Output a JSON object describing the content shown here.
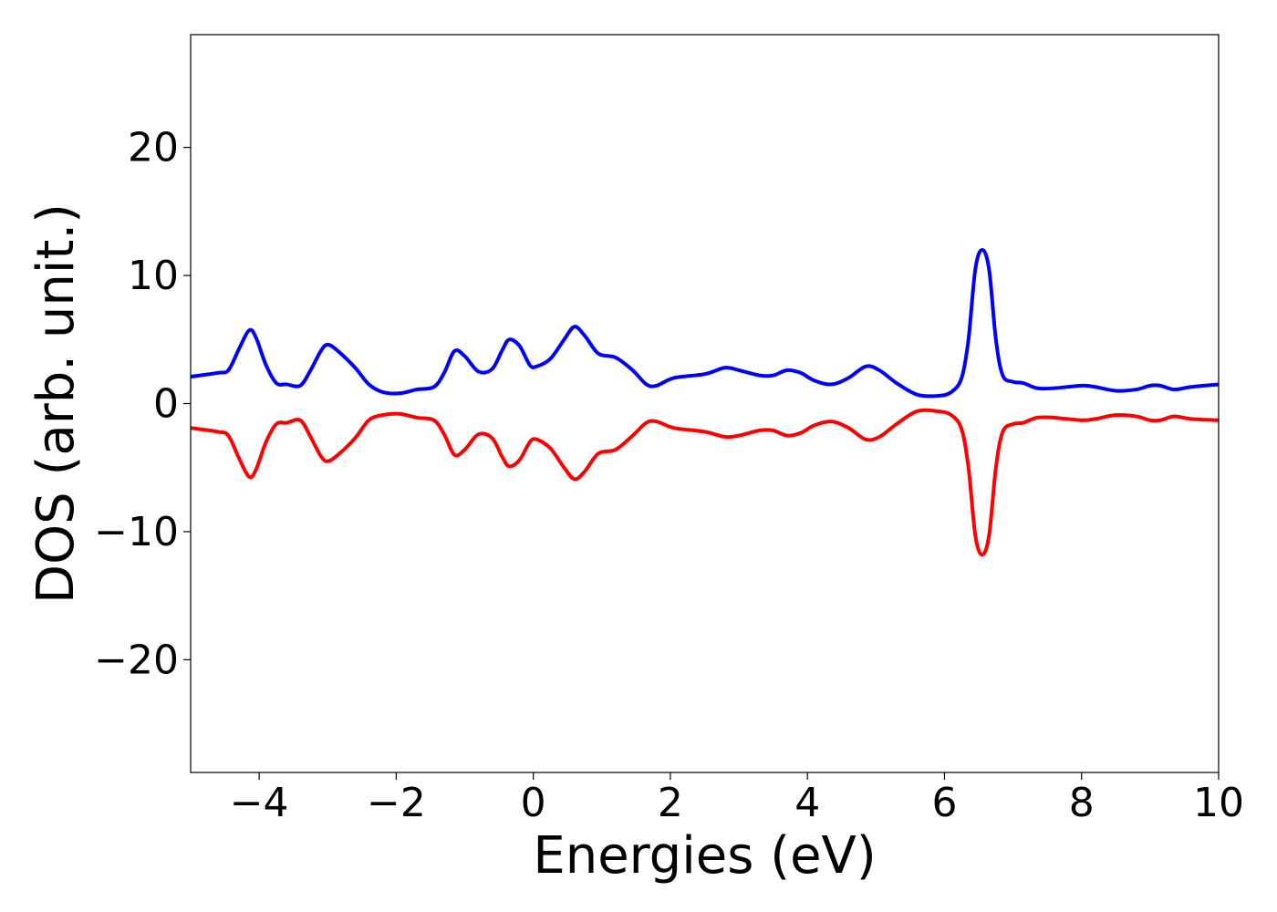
{
  "chart_data": {
    "type": "line",
    "title": "",
    "xlabel": "Energies (eV)",
    "ylabel": "DOS (arb. unit.)",
    "xlim": [
      -5,
      10
    ],
    "ylim": [
      -28.8,
      28.8
    ],
    "xticks": [
      -4,
      -2,
      0,
      2,
      4,
      6,
      8,
      10
    ],
    "yticks": [
      -20,
      -10,
      0,
      10,
      20
    ],
    "xtick_labels": [
      "−4",
      "−2",
      "0",
      "2",
      "4",
      "6",
      "8",
      "10"
    ],
    "ytick_labels": [
      "−20",
      "−10",
      "0",
      "10",
      "20"
    ],
    "grid": false,
    "legend": "none",
    "series": [
      {
        "color": "#0000ff",
        "points": [
          [
            -5.0,
            2.1
          ],
          [
            -4.6,
            2.4
          ],
          [
            -4.45,
            2.6
          ],
          [
            -4.3,
            4.2
          ],
          [
            -4.15,
            5.7
          ],
          [
            -4.05,
            5.2
          ],
          [
            -3.9,
            3.0
          ],
          [
            -3.75,
            1.6
          ],
          [
            -3.6,
            1.5
          ],
          [
            -3.4,
            1.4
          ],
          [
            -3.25,
            2.6
          ],
          [
            -3.1,
            4.1
          ],
          [
            -3.0,
            4.6
          ],
          [
            -2.85,
            4.1
          ],
          [
            -2.6,
            2.8
          ],
          [
            -2.4,
            1.5
          ],
          [
            -2.2,
            0.9
          ],
          [
            -1.95,
            0.8
          ],
          [
            -1.7,
            1.1
          ],
          [
            -1.45,
            1.3
          ],
          [
            -1.3,
            2.4
          ],
          [
            -1.15,
            4.1
          ],
          [
            -1.0,
            3.7
          ],
          [
            -0.8,
            2.5
          ],
          [
            -0.6,
            2.7
          ],
          [
            -0.45,
            4.2
          ],
          [
            -0.35,
            5.0
          ],
          [
            -0.2,
            4.5
          ],
          [
            -0.05,
            3.0
          ],
          [
            0.05,
            2.9
          ],
          [
            0.25,
            3.5
          ],
          [
            0.45,
            5.0
          ],
          [
            0.6,
            6.0
          ],
          [
            0.75,
            5.3
          ],
          [
            0.95,
            3.9
          ],
          [
            1.2,
            3.6
          ],
          [
            1.45,
            2.6
          ],
          [
            1.65,
            1.5
          ],
          [
            1.8,
            1.4
          ],
          [
            2.05,
            2.0
          ],
          [
            2.5,
            2.3
          ],
          [
            2.8,
            2.8
          ],
          [
            3.0,
            2.6
          ],
          [
            3.3,
            2.2
          ],
          [
            3.5,
            2.2
          ],
          [
            3.7,
            2.6
          ],
          [
            3.9,
            2.4
          ],
          [
            4.1,
            1.8
          ],
          [
            4.35,
            1.5
          ],
          [
            4.6,
            2.0
          ],
          [
            4.85,
            2.9
          ],
          [
            5.05,
            2.6
          ],
          [
            5.3,
            1.6
          ],
          [
            5.6,
            0.7
          ],
          [
            5.9,
            0.6
          ],
          [
            6.1,
            0.9
          ],
          [
            6.25,
            2.0
          ],
          [
            6.35,
            5.0
          ],
          [
            6.45,
            10.5
          ],
          [
            6.55,
            12.0
          ],
          [
            6.65,
            10.5
          ],
          [
            6.75,
            5.0
          ],
          [
            6.85,
            2.2
          ],
          [
            7.0,
            1.7
          ],
          [
            7.15,
            1.6
          ],
          [
            7.35,
            1.2
          ],
          [
            7.6,
            1.2
          ],
          [
            8.0,
            1.4
          ],
          [
            8.2,
            1.3
          ],
          [
            8.5,
            1.0
          ],
          [
            8.8,
            1.1
          ],
          [
            9.0,
            1.4
          ],
          [
            9.15,
            1.4
          ],
          [
            9.35,
            1.1
          ],
          [
            9.6,
            1.3
          ],
          [
            10.0,
            1.5
          ]
        ]
      },
      {
        "color": "#ff0000",
        "points": [
          [
            -5.0,
            -1.9
          ],
          [
            -4.6,
            -2.2
          ],
          [
            -4.45,
            -2.5
          ],
          [
            -4.3,
            -4.2
          ],
          [
            -4.15,
            -5.7
          ],
          [
            -4.05,
            -5.2
          ],
          [
            -3.9,
            -3.0
          ],
          [
            -3.75,
            -1.6
          ],
          [
            -3.6,
            -1.5
          ],
          [
            -3.4,
            -1.3
          ],
          [
            -3.25,
            -2.6
          ],
          [
            -3.1,
            -4.1
          ],
          [
            -3.0,
            -4.5
          ],
          [
            -2.85,
            -4.0
          ],
          [
            -2.6,
            -2.7
          ],
          [
            -2.4,
            -1.3
          ],
          [
            -2.2,
            -0.9
          ],
          [
            -1.95,
            -0.8
          ],
          [
            -1.7,
            -1.1
          ],
          [
            -1.45,
            -1.3
          ],
          [
            -1.3,
            -2.4
          ],
          [
            -1.15,
            -4.0
          ],
          [
            -1.0,
            -3.6
          ],
          [
            -0.8,
            -2.4
          ],
          [
            -0.6,
            -2.7
          ],
          [
            -0.45,
            -4.2
          ],
          [
            -0.35,
            -4.9
          ],
          [
            -0.2,
            -4.4
          ],
          [
            -0.05,
            -3.0
          ],
          [
            0.05,
            -2.8
          ],
          [
            0.25,
            -3.5
          ],
          [
            0.45,
            -5.0
          ],
          [
            0.6,
            -5.9
          ],
          [
            0.75,
            -5.3
          ],
          [
            0.95,
            -3.9
          ],
          [
            1.2,
            -3.6
          ],
          [
            1.45,
            -2.5
          ],
          [
            1.65,
            -1.5
          ],
          [
            1.8,
            -1.4
          ],
          [
            2.05,
            -1.9
          ],
          [
            2.5,
            -2.2
          ],
          [
            2.8,
            -2.6
          ],
          [
            3.0,
            -2.5
          ],
          [
            3.3,
            -2.1
          ],
          [
            3.5,
            -2.1
          ],
          [
            3.7,
            -2.5
          ],
          [
            3.9,
            -2.3
          ],
          [
            4.1,
            -1.7
          ],
          [
            4.35,
            -1.4
          ],
          [
            4.6,
            -1.9
          ],
          [
            4.85,
            -2.8
          ],
          [
            5.05,
            -2.6
          ],
          [
            5.3,
            -1.6
          ],
          [
            5.6,
            -0.6
          ],
          [
            5.9,
            -0.6
          ],
          [
            6.1,
            -0.9
          ],
          [
            6.25,
            -2.0
          ],
          [
            6.35,
            -5.0
          ],
          [
            6.45,
            -10.3
          ],
          [
            6.55,
            -11.8
          ],
          [
            6.65,
            -10.3
          ],
          [
            6.75,
            -5.0
          ],
          [
            6.85,
            -2.2
          ],
          [
            7.0,
            -1.6
          ],
          [
            7.15,
            -1.5
          ],
          [
            7.35,
            -1.1
          ],
          [
            7.6,
            -1.1
          ],
          [
            8.0,
            -1.3
          ],
          [
            8.2,
            -1.2
          ],
          [
            8.5,
            -0.9
          ],
          [
            8.8,
            -1.0
          ],
          [
            9.0,
            -1.3
          ],
          [
            9.15,
            -1.3
          ],
          [
            9.35,
            -1.0
          ],
          [
            9.6,
            -1.2
          ],
          [
            10.0,
            -1.3
          ]
        ]
      }
    ]
  }
}
